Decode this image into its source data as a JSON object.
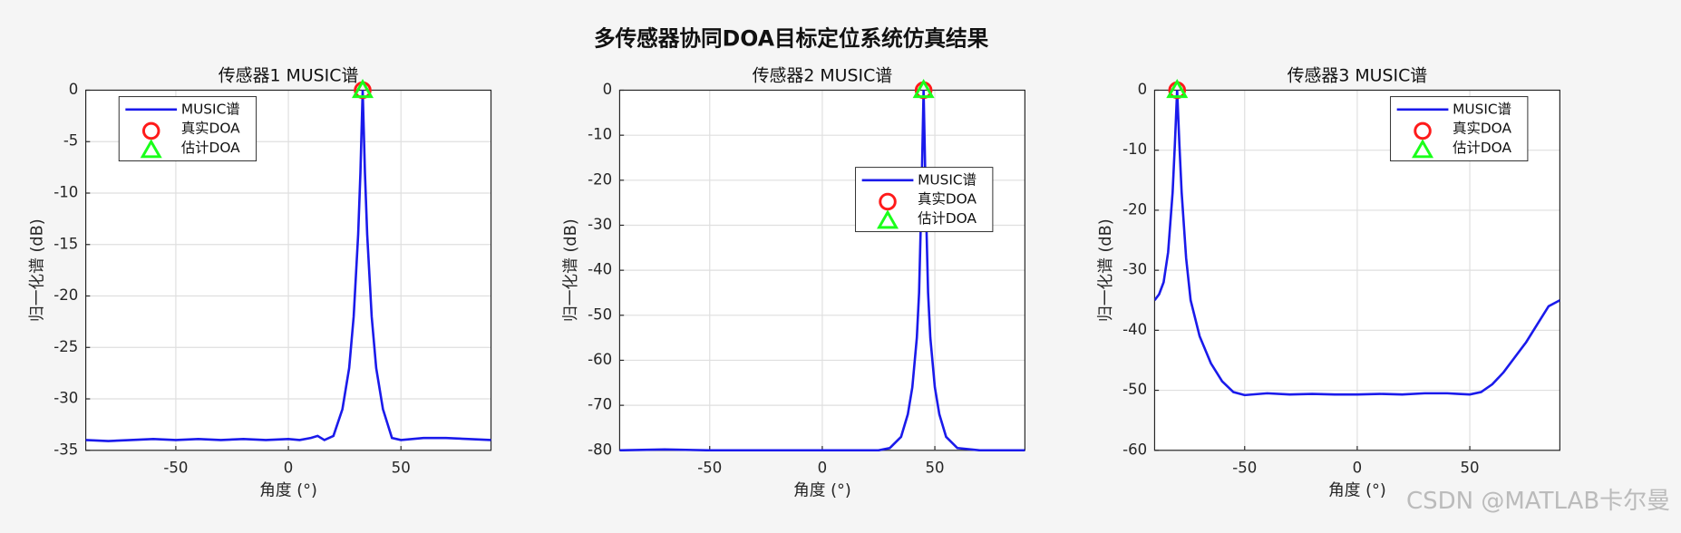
{
  "title": "多传感器协同DOA目标定位系统仿真结果",
  "watermark": "CSDN @MATLAB卡尔曼",
  "chart_data": [
    {
      "type": "line",
      "title": "传感器1 MUSIC谱",
      "xlabel": "角度 (°)",
      "ylabel": "归一化谱 (dB)",
      "xlim": [
        -90,
        90
      ],
      "xticks": [
        -50,
        0,
        50
      ],
      "ylim": [
        -35,
        0
      ],
      "yticks": [
        0,
        -5,
        -10,
        -15,
        -20,
        -25,
        -30,
        -35
      ],
      "grid": true,
      "legend": "northwest",
      "x": [
        -90,
        -80,
        -70,
        -60,
        -50,
        -40,
        -30,
        -20,
        -10,
        0,
        5,
        10,
        13,
        16,
        20,
        24,
        27,
        29,
        31,
        32,
        33,
        34,
        35,
        37,
        39,
        42,
        46,
        50,
        60,
        70,
        80,
        90
      ],
      "series": [
        {
          "name": "MUSIC谱",
          "color": "#1a1aeb",
          "values": [
            -34,
            -34.1,
            -34,
            -33.9,
            -34,
            -33.9,
            -34,
            -33.9,
            -34,
            -33.9,
            -34,
            -33.8,
            -33.6,
            -34,
            -33.6,
            -31,
            -27,
            -22,
            -14,
            -8,
            0,
            -8,
            -14,
            -22,
            -27,
            -31,
            -33.8,
            -34,
            -33.8,
            -33.8,
            -33.9,
            -34
          ]
        },
        {
          "name": "真实DOA",
          "color": "#ff1a1a",
          "marker": "circle",
          "x": [
            33
          ],
          "values": [
            0
          ]
        },
        {
          "name": "估计DOA",
          "color": "#1aff1a",
          "marker": "triangle",
          "x": [
            33
          ],
          "values": [
            0
          ]
        }
      ]
    },
    {
      "type": "line",
      "title": "传感器2 MUSIC谱",
      "xlabel": "角度 (°)",
      "ylabel": "归一化谱 (dB)",
      "xlim": [
        -90,
        90
      ],
      "xticks": [
        -50,
        0,
        50
      ],
      "ylim": [
        -80,
        0
      ],
      "yticks": [
        0,
        -10,
        -20,
        -30,
        -40,
        -50,
        -60,
        -70,
        -80
      ],
      "grid": true,
      "legend": "east",
      "x": [
        -90,
        -70,
        -50,
        -30,
        -10,
        10,
        25,
        30,
        35,
        38,
        40,
        42,
        43,
        44,
        45,
        46,
        47,
        48,
        50,
        52,
        55,
        60,
        70,
        90
      ],
      "series": [
        {
          "name": "MUSIC谱",
          "color": "#1a1aeb",
          "values": [
            -80,
            -79.8,
            -80,
            -80,
            -80,
            -80,
            -80,
            -79.5,
            -77,
            -72,
            -66,
            -55,
            -45,
            -25,
            0,
            -25,
            -45,
            -55,
            -66,
            -72,
            -77,
            -79.5,
            -80,
            -80
          ]
        },
        {
          "name": "真实DOA",
          "color": "#ff1a1a",
          "marker": "circle",
          "x": [
            45
          ],
          "values": [
            0
          ]
        },
        {
          "name": "估计DOA",
          "color": "#1aff1a",
          "marker": "triangle",
          "x": [
            45
          ],
          "values": [
            0
          ]
        }
      ]
    },
    {
      "type": "line",
      "title": "传感器3 MUSIC谱",
      "xlabel": "角度 (°)",
      "ylabel": "归一化谱 (dB)",
      "xlim": [
        -90,
        90
      ],
      "xticks": [
        -50,
        0,
        50
      ],
      "ylim": [
        -60,
        0
      ],
      "yticks": [
        0,
        -10,
        -20,
        -30,
        -40,
        -50,
        -60
      ],
      "grid": true,
      "legend": "northeast",
      "x": [
        -90,
        -88,
        -86,
        -84,
        -82,
        -81,
        -80,
        -79,
        -78,
        -76,
        -74,
        -70,
        -65,
        -60,
        -55,
        -50,
        -40,
        -30,
        -20,
        -10,
        0,
        10,
        20,
        30,
        40,
        45,
        50,
        55,
        60,
        65,
        70,
        75,
        80,
        85,
        90
      ],
      "series": [
        {
          "name": "MUSIC谱",
          "color": "#1a1aeb",
          "values": [
            -35,
            -34,
            -32,
            -27,
            -17,
            -9,
            0,
            -9,
            -17,
            -28,
            -35,
            -41,
            -45.5,
            -48.5,
            -50.3,
            -50.8,
            -50.5,
            -50.7,
            -50.6,
            -50.7,
            -50.7,
            -50.6,
            -50.7,
            -50.5,
            -50.5,
            -50.6,
            -50.7,
            -50.3,
            -49,
            -47,
            -44.5,
            -42,
            -39,
            -36,
            -35
          ]
        },
        {
          "name": "真实DOA",
          "color": "#ff1a1a",
          "marker": "circle",
          "x": [
            -80
          ],
          "values": [
            0
          ]
        },
        {
          "name": "估计DOA",
          "color": "#1aff1a",
          "marker": "triangle",
          "x": [
            -80
          ],
          "values": [
            0
          ]
        }
      ]
    }
  ]
}
